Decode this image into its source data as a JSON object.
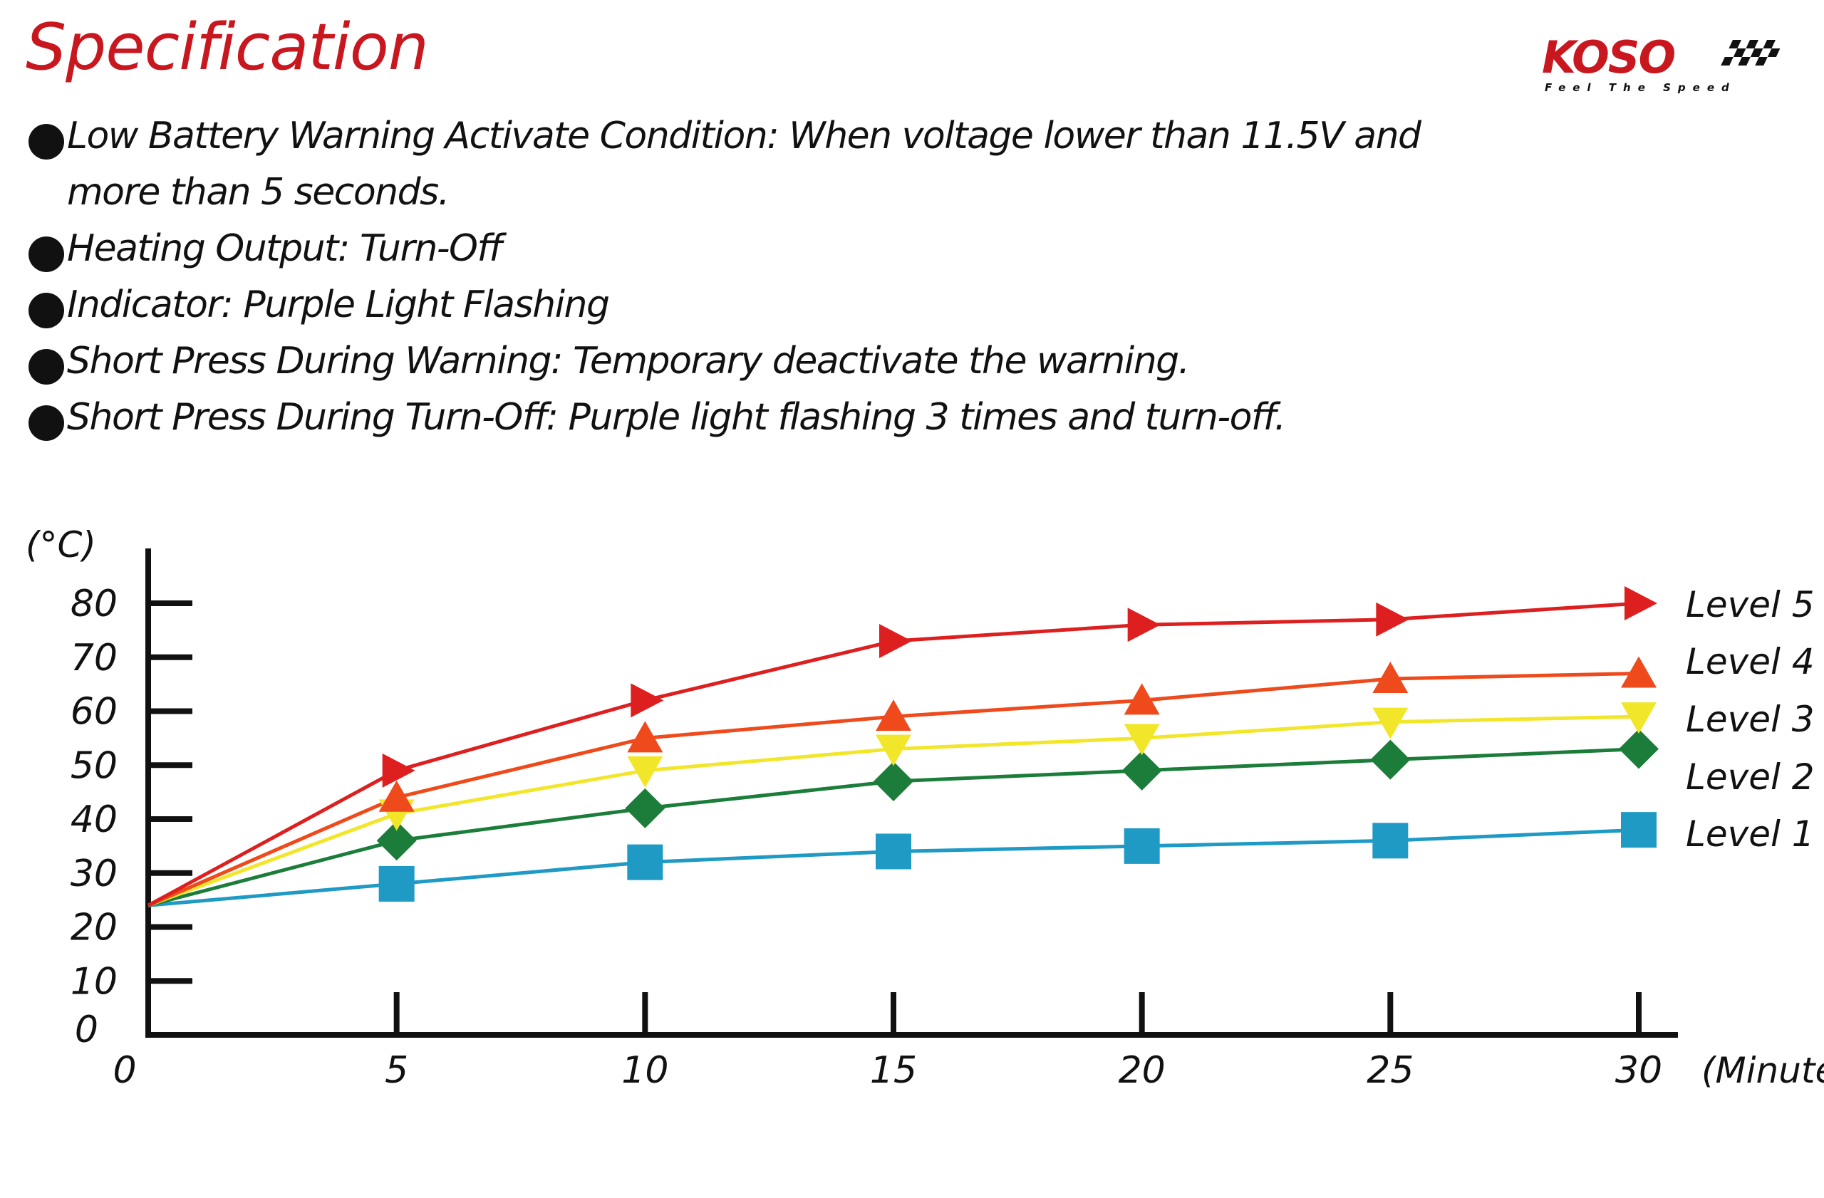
{
  "title": "Specification",
  "logo": {
    "brand": "KOSO",
    "tagline": "Feel The Speed",
    "brand_color": "#c8171f"
  },
  "bullets": [
    "Low Battery Warning Activate Condition: When voltage lower than 11.5V and more than 5 seconds.",
    "Heating Output: Turn-Off",
    "Indicator: Purple Light Flashing",
    "Short Press During Warning: Temporary deactivate the warning.",
    "Short Press During Turn-Off: Purple light flashing 3 times and turn-off."
  ],
  "chart_data": {
    "type": "line",
    "ylabel": "(°C)",
    "xlabel": "(Minute",
    "x": [
      0,
      5,
      10,
      15,
      20,
      25,
      30
    ],
    "x_ticks": [
      "0",
      "5",
      "10",
      "15",
      "20",
      "25",
      "30"
    ],
    "y_ticks": [
      "0",
      "10",
      "20",
      "30",
      "40",
      "50",
      "60",
      "70",
      "80"
    ],
    "xlim": [
      0,
      30
    ],
    "ylim": [
      0,
      80
    ],
    "grid": false,
    "legend": "right, labels at line ends",
    "series": [
      {
        "name": "Level 5",
        "color": "#dd1f1f",
        "marker": "triangle-right",
        "values": [
          24,
          49,
          62,
          73,
          76,
          77,
          80
        ]
      },
      {
        "name": "Level 4",
        "color": "#ee4a1c",
        "marker": "triangle-up",
        "values": [
          24,
          44,
          55,
          59,
          62,
          66,
          67
        ]
      },
      {
        "name": "Level 3",
        "color": "#f2e62a",
        "marker": "triangle-down",
        "values": [
          24,
          41,
          49,
          53,
          55,
          58,
          59
        ]
      },
      {
        "name": "Level 2",
        "color": "#1c7d3a",
        "marker": "diamond",
        "values": [
          24,
          36,
          42,
          47,
          49,
          51,
          53
        ]
      },
      {
        "name": "Level 1",
        "color": "#1e9ac4",
        "marker": "square",
        "values": [
          24,
          28,
          32,
          34,
          35,
          36,
          38
        ]
      }
    ]
  }
}
